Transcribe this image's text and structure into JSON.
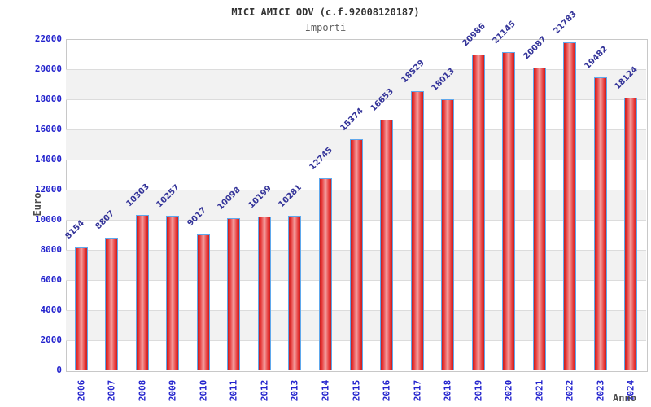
{
  "header": {
    "title": "MICI AMICI ODV (c.f.92008120187)",
    "subtitle": "Importi"
  },
  "chart_data": {
    "type": "bar",
    "title": "MICI AMICI ODV (c.f.92008120187)",
    "subtitle": "Importi",
    "xlabel": "Anno",
    "ylabel": "Euro",
    "categories": [
      "2006",
      "2007",
      "2008",
      "2009",
      "2010",
      "2011",
      "2012",
      "2013",
      "2014",
      "2015",
      "2016",
      "2017",
      "2018",
      "2019",
      "2020",
      "2021",
      "2022",
      "2023",
      "2024"
    ],
    "values": [
      8154,
      8807,
      10303,
      10257,
      9017,
      10098,
      10199,
      10281,
      12745,
      15374,
      16653,
      18529,
      18013,
      20986,
      21145,
      20087,
      21783,
      19482,
      18124
    ],
    "ylim": [
      0,
      22000
    ],
    "ytick_step": 2000,
    "yticks": [
      0,
      2000,
      4000,
      6000,
      8000,
      10000,
      12000,
      14000,
      16000,
      18000,
      20000,
      22000
    ],
    "grid": "horizontal-bands",
    "legend": "none",
    "colors": {
      "bar_fill_edge": "#c92121",
      "bar_fill_center": "#f4a2a2",
      "bar_border": "#5fa8ec",
      "tick_label": "#2323cd",
      "value_label": "#343499",
      "band": "#f2f2f2",
      "gridline": "#dcdcdc",
      "plot_border": "#c8c8c8",
      "title": "#333333",
      "subtitle": "#606060",
      "axis_title": "#4d4d4d"
    }
  }
}
